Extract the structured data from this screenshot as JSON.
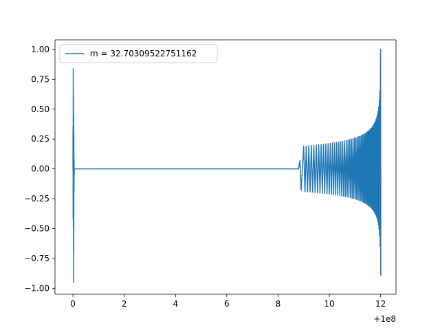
{
  "chart_data": {
    "type": "line",
    "title": "",
    "xlabel": "",
    "ylabel": "",
    "x_offset_label": "+1e8",
    "xlim": [
      -0.7,
      12.6
    ],
    "ylim": [
      -1.05,
      1.08
    ],
    "xticks": [
      0,
      2,
      4,
      6,
      8,
      10,
      12
    ],
    "xtick_labels": [
      "0",
      "2",
      "4",
      "6",
      "8",
      "10",
      "12"
    ],
    "yticks": [
      -1.0,
      -0.75,
      -0.5,
      -0.25,
      0.0,
      0.25,
      0.5,
      0.75,
      1.0
    ],
    "ytick_labels": [
      "−1.00",
      "−0.75",
      "−0.50",
      "−0.25",
      "0.00",
      "0.25",
      "0.50",
      "0.75",
      "1.00"
    ],
    "grid": false,
    "legend_position": "top-left",
    "series": [
      {
        "name": "m = 32.70309522751162",
        "color": "#1f77b4",
        "features": {
          "initial_spike": {
            "x": 0.0,
            "max": 0.84,
            "min": -0.95
          },
          "flat_segment": {
            "x_start": 0.05,
            "x_end": 8.8,
            "y": 0.0
          },
          "first_peak": {
            "x": 8.85,
            "y": 0.07
          },
          "first_trough": {
            "x": 8.9,
            "y": -0.18
          },
          "oscillation_start": {
            "x": 9.0,
            "amplitude": 0.19
          },
          "oscillation_end": {
            "x": 12.0,
            "max": 1.0,
            "min": -0.89
          },
          "oscillation_period_start": 0.1,
          "oscillation_period_end": 0.02
        }
      }
    ]
  }
}
